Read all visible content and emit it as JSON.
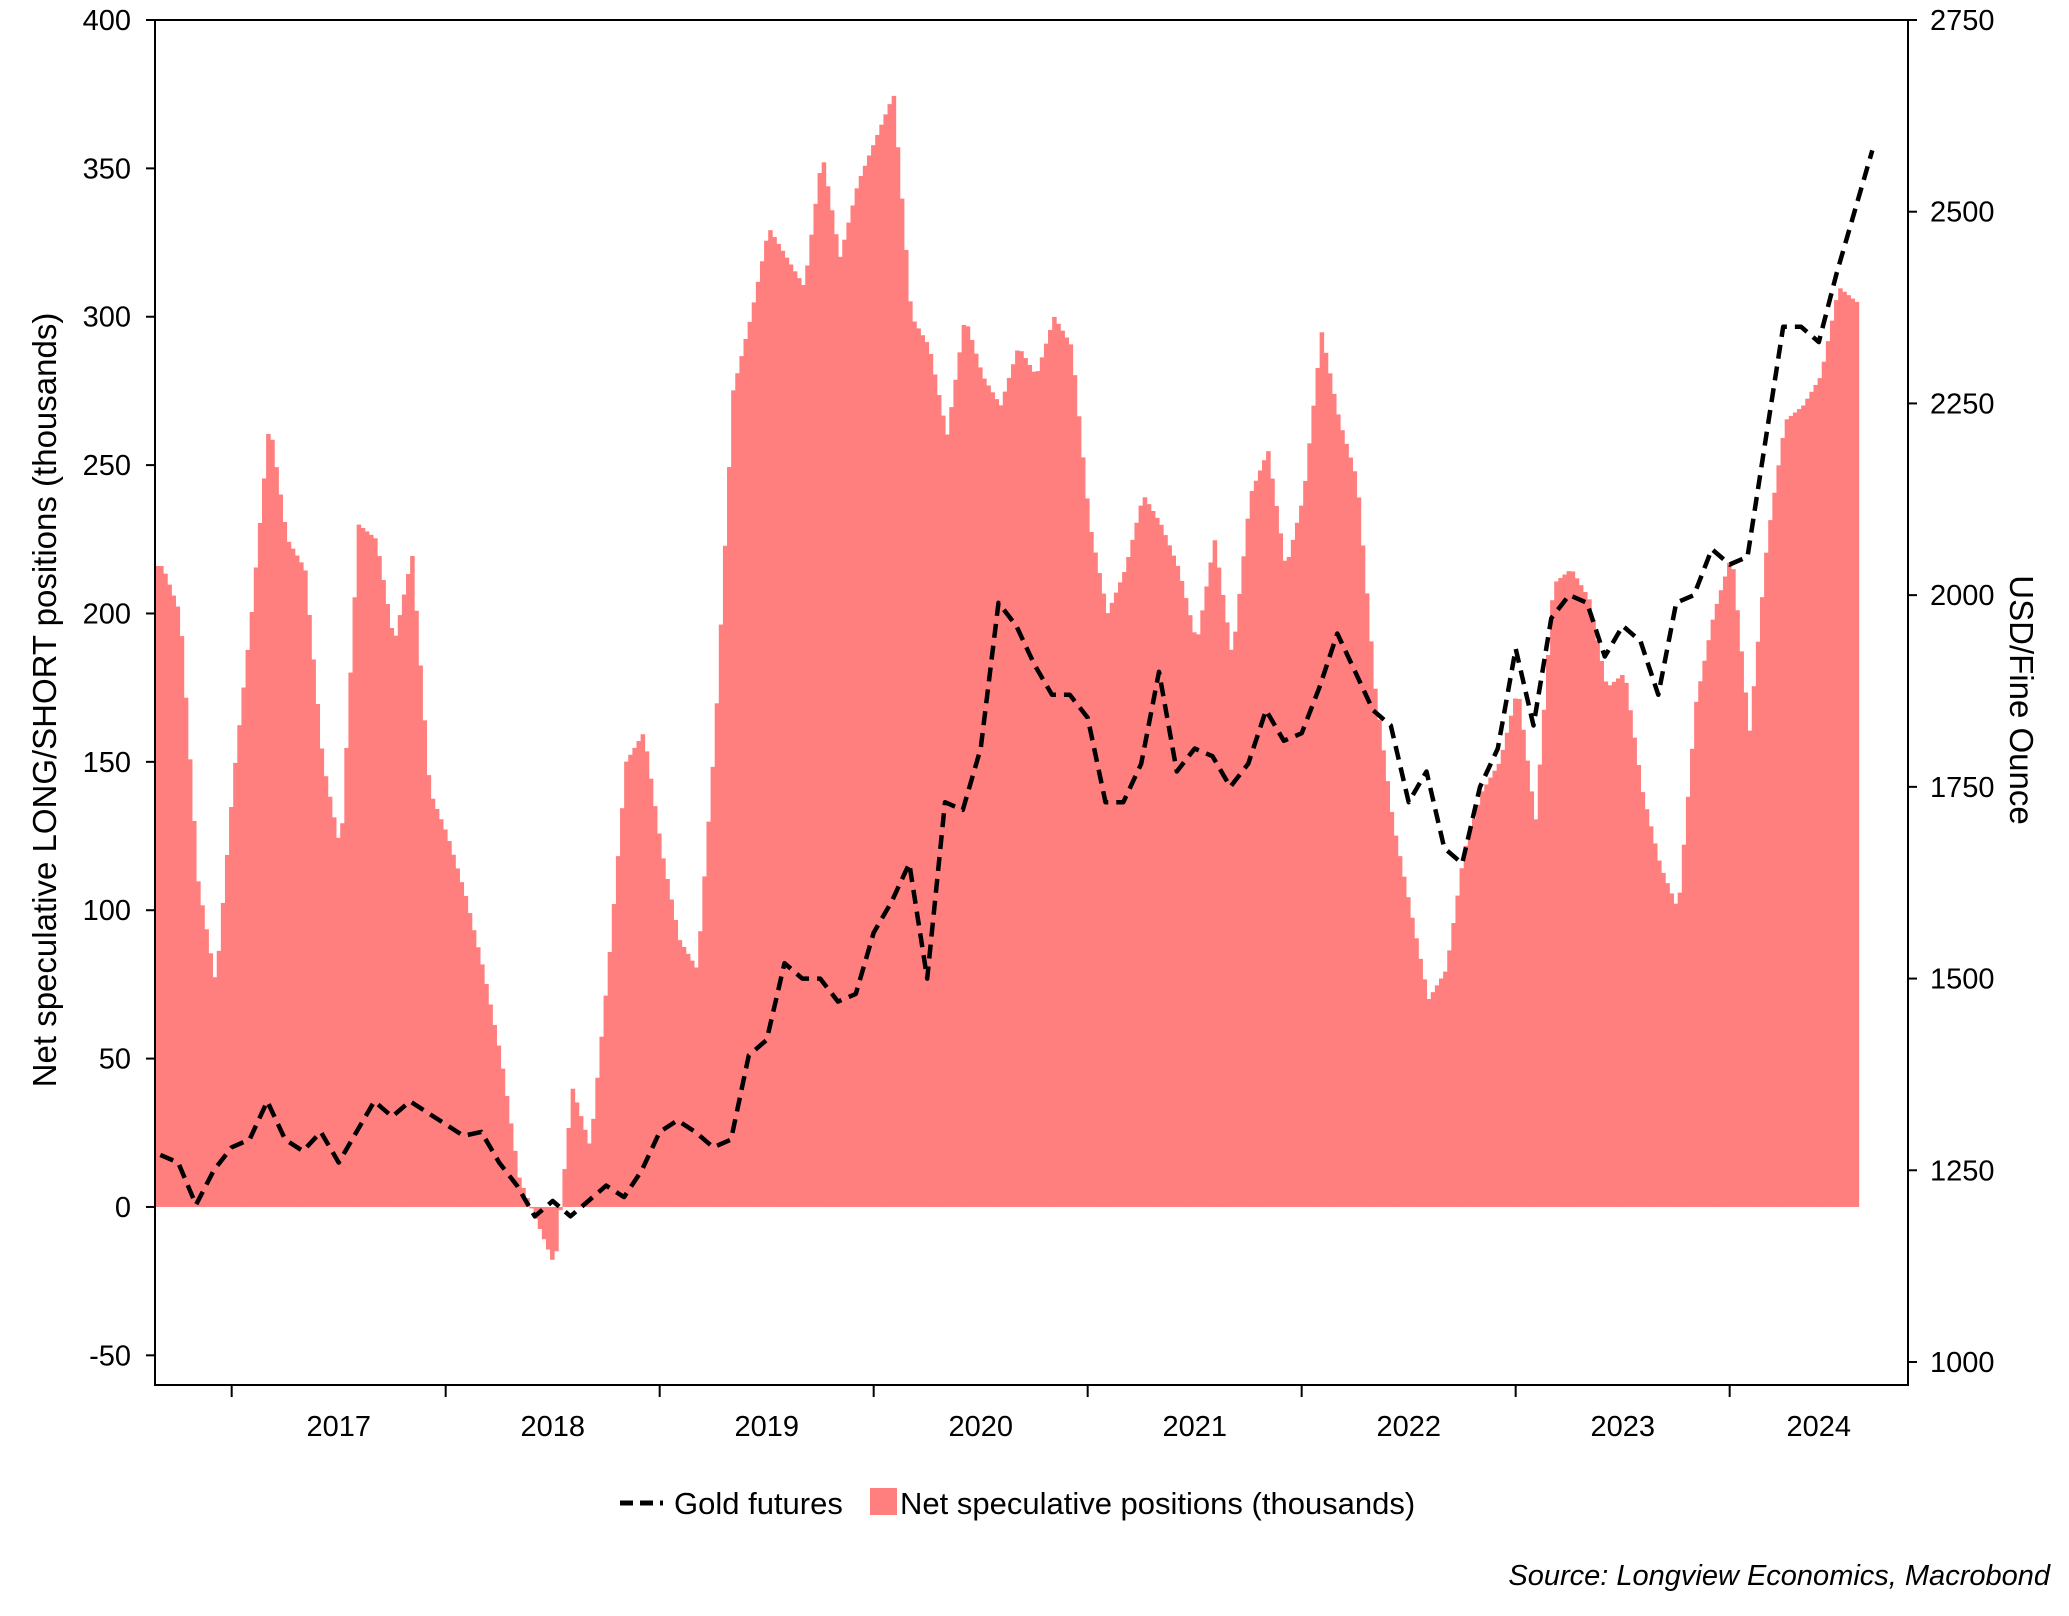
{
  "chart_data": {
    "type": "bar+line",
    "title": "",
    "x_axis": {
      "years": [
        "2017",
        "2018",
        "2019",
        "2020",
        "2021",
        "2022",
        "2023",
        "2024"
      ]
    },
    "y_left": {
      "label": "Net speculative LONG/SHORT positions (thousands)",
      "range": [
        -60,
        400
      ],
      "ticks": [
        "400",
        "350",
        "300",
        "250",
        "200",
        "150",
        "100",
        "50",
        "0",
        "-50"
      ]
    },
    "y_right": {
      "label": "USD/Fine Ounce",
      "range": [
        970,
        2750
      ],
      "ticks": [
        "2750",
        "2500",
        "2250",
        "2000",
        "1750",
        "1500",
        "1250",
        "1000"
      ]
    },
    "series": [
      {
        "name": "Net speculative positions (thousands)",
        "type": "bar",
        "axis": "left",
        "color": "#ff7f7f",
        "points": [
          [
            "2016-09-01",
            216
          ],
          [
            "2016-10-01",
            200
          ],
          [
            "2016-11-01",
            110
          ],
          [
            "2016-12-01",
            75
          ],
          [
            "2017-01-01",
            145
          ],
          [
            "2017-02-01",
            200
          ],
          [
            "2017-03-01",
            265
          ],
          [
            "2017-04-01",
            225
          ],
          [
            "2017-05-01",
            215
          ],
          [
            "2017-06-01",
            150
          ],
          [
            "2017-07-01",
            120
          ],
          [
            "2017-08-01",
            230
          ],
          [
            "2017-09-01",
            225
          ],
          [
            "2017-10-01",
            190
          ],
          [
            "2017-11-01",
            220
          ],
          [
            "2017-12-01",
            140
          ],
          [
            "2018-01-01",
            125
          ],
          [
            "2018-02-01",
            105
          ],
          [
            "2018-03-01",
            80
          ],
          [
            "2018-04-01",
            50
          ],
          [
            "2018-05-01",
            10
          ],
          [
            "2018-06-01",
            -5
          ],
          [
            "2018-07-01",
            -20
          ],
          [
            "2018-08-01",
            40
          ],
          [
            "2018-09-01",
            20
          ],
          [
            "2018-10-01",
            80
          ],
          [
            "2018-11-01",
            150
          ],
          [
            "2018-12-01",
            160
          ],
          [
            "2019-01-01",
            120
          ],
          [
            "2019-02-01",
            90
          ],
          [
            "2019-03-01",
            80
          ],
          [
            "2019-04-01",
            160
          ],
          [
            "2019-05-01",
            275
          ],
          [
            "2019-06-01",
            300
          ],
          [
            "2019-07-01",
            330
          ],
          [
            "2019-08-01",
            320
          ],
          [
            "2019-09-01",
            310
          ],
          [
            "2019-10-01",
            355
          ],
          [
            "2019-11-01",
            320
          ],
          [
            "2019-12-01",
            345
          ],
          [
            "2020-01-01",
            360
          ],
          [
            "2020-02-01",
            375
          ],
          [
            "2020-03-01",
            300
          ],
          [
            "2020-04-01",
            290
          ],
          [
            "2020-05-01",
            260
          ],
          [
            "2020-06-01",
            300
          ],
          [
            "2020-07-01",
            280
          ],
          [
            "2020-08-01",
            270
          ],
          [
            "2020-09-01",
            290
          ],
          [
            "2020-10-01",
            280
          ],
          [
            "2020-11-01",
            300
          ],
          [
            "2020-12-01",
            290
          ],
          [
            "2021-01-01",
            230
          ],
          [
            "2021-02-01",
            200
          ],
          [
            "2021-03-01",
            215
          ],
          [
            "2021-04-01",
            240
          ],
          [
            "2021-05-01",
            230
          ],
          [
            "2021-06-01",
            215
          ],
          [
            "2021-07-01",
            190
          ],
          [
            "2021-08-01",
            225
          ],
          [
            "2021-09-01",
            185
          ],
          [
            "2021-10-01",
            240
          ],
          [
            "2021-11-01",
            255
          ],
          [
            "2021-12-01",
            215
          ],
          [
            "2022-01-01",
            240
          ],
          [
            "2022-02-01",
            295
          ],
          [
            "2022-03-01",
            265
          ],
          [
            "2022-04-01",
            245
          ],
          [
            "2022-05-01",
            175
          ],
          [
            "2022-06-01",
            130
          ],
          [
            "2022-07-01",
            100
          ],
          [
            "2022-08-01",
            70
          ],
          [
            "2022-09-01",
            80
          ],
          [
            "2022-10-01",
            120
          ],
          [
            "2022-11-01",
            140
          ],
          [
            "2022-12-01",
            150
          ],
          [
            "2023-01-01",
            175
          ],
          [
            "2023-02-01",
            130
          ],
          [
            "2023-03-01",
            210
          ],
          [
            "2023-04-01",
            215
          ],
          [
            "2023-05-01",
            205
          ],
          [
            "2023-06-01",
            175
          ],
          [
            "2023-07-01",
            180
          ],
          [
            "2023-08-01",
            140
          ],
          [
            "2023-09-01",
            115
          ],
          [
            "2023-10-01",
            100
          ],
          [
            "2023-11-01",
            170
          ],
          [
            "2023-12-01",
            200
          ],
          [
            "2024-01-01",
            220
          ],
          [
            "2024-02-01",
            160
          ],
          [
            "2024-03-01",
            225
          ],
          [
            "2024-04-01",
            265
          ],
          [
            "2024-05-01",
            270
          ],
          [
            "2024-06-01",
            280
          ],
          [
            "2024-07-01",
            310
          ],
          [
            "2024-08-01",
            305
          ]
        ]
      },
      {
        "name": "Gold futures",
        "type": "line",
        "style": "dashed",
        "axis": "right",
        "color": "#000000",
        "points": [
          [
            "2016-09-01",
            1270
          ],
          [
            "2016-10-01",
            1260
          ],
          [
            "2016-11-01",
            1205
          ],
          [
            "2016-12-01",
            1250
          ],
          [
            "2017-01-01",
            1280
          ],
          [
            "2017-02-01",
            1290
          ],
          [
            "2017-03-01",
            1340
          ],
          [
            "2017-04-01",
            1290
          ],
          [
            "2017-05-01",
            1275
          ],
          [
            "2017-06-01",
            1300
          ],
          [
            "2017-07-01",
            1260
          ],
          [
            "2017-08-01",
            1300
          ],
          [
            "2017-09-01",
            1340
          ],
          [
            "2017-10-01",
            1320
          ],
          [
            "2017-11-01",
            1340
          ],
          [
            "2017-12-01",
            1325
          ],
          [
            "2018-01-01",
            1310
          ],
          [
            "2018-02-01",
            1295
          ],
          [
            "2018-03-01",
            1300
          ],
          [
            "2018-04-01",
            1260
          ],
          [
            "2018-05-01",
            1230
          ],
          [
            "2018-06-01",
            1190
          ],
          [
            "2018-07-01",
            1210
          ],
          [
            "2018-08-01",
            1190
          ],
          [
            "2018-09-01",
            1210
          ],
          [
            "2018-10-01",
            1230
          ],
          [
            "2018-11-01",
            1215
          ],
          [
            "2018-12-01",
            1250
          ],
          [
            "2019-01-01",
            1300
          ],
          [
            "2019-02-01",
            1315
          ],
          [
            "2019-03-01",
            1300
          ],
          [
            "2019-04-01",
            1280
          ],
          [
            "2019-05-01",
            1290
          ],
          [
            "2019-06-01",
            1400
          ],
          [
            "2019-07-01",
            1420
          ],
          [
            "2019-08-01",
            1520
          ],
          [
            "2019-09-01",
            1500
          ],
          [
            "2019-10-01",
            1500
          ],
          [
            "2019-11-01",
            1470
          ],
          [
            "2019-12-01",
            1480
          ],
          [
            "2020-01-01",
            1560
          ],
          [
            "2020-02-01",
            1600
          ],
          [
            "2020-03-01",
            1650
          ],
          [
            "2020-04-01",
            1500
          ],
          [
            "2020-05-01",
            1730
          ],
          [
            "2020-06-01",
            1720
          ],
          [
            "2020-07-01",
            1800
          ],
          [
            "2020-08-01",
            1990
          ],
          [
            "2020-09-01",
            1960
          ],
          [
            "2020-10-01",
            1910
          ],
          [
            "2020-11-01",
            1870
          ],
          [
            "2020-12-01",
            1870
          ],
          [
            "2021-01-01",
            1840
          ],
          [
            "2021-02-01",
            1730
          ],
          [
            "2021-03-01",
            1730
          ],
          [
            "2021-04-01",
            1780
          ],
          [
            "2021-05-01",
            1900
          ],
          [
            "2021-06-01",
            1770
          ],
          [
            "2021-07-01",
            1800
          ],
          [
            "2021-08-01",
            1790
          ],
          [
            "2021-09-01",
            1750
          ],
          [
            "2021-10-01",
            1780
          ],
          [
            "2021-11-01",
            1850
          ],
          [
            "2021-12-01",
            1810
          ],
          [
            "2022-01-01",
            1820
          ],
          [
            "2022-02-01",
            1880
          ],
          [
            "2022-03-01",
            1950
          ],
          [
            "2022-04-01",
            1900
          ],
          [
            "2022-05-01",
            1850
          ],
          [
            "2022-06-01",
            1830
          ],
          [
            "2022-07-01",
            1730
          ],
          [
            "2022-08-01",
            1770
          ],
          [
            "2022-09-01",
            1670
          ],
          [
            "2022-10-01",
            1650
          ],
          [
            "2022-11-01",
            1750
          ],
          [
            "2022-12-01",
            1800
          ],
          [
            "2023-01-01",
            1930
          ],
          [
            "2023-02-01",
            1830
          ],
          [
            "2023-03-01",
            1970
          ],
          [
            "2023-04-01",
            2000
          ],
          [
            "2023-05-01",
            1990
          ],
          [
            "2023-06-01",
            1920
          ],
          [
            "2023-07-01",
            1960
          ],
          [
            "2023-08-01",
            1940
          ],
          [
            "2023-09-01",
            1870
          ],
          [
            "2023-10-01",
            1990
          ],
          [
            "2023-11-01",
            2000
          ],
          [
            "2023-12-01",
            2060
          ],
          [
            "2024-01-01",
            2040
          ],
          [
            "2024-02-01",
            2050
          ],
          [
            "2024-03-01",
            2200
          ],
          [
            "2024-04-01",
            2350
          ],
          [
            "2024-05-01",
            2350
          ],
          [
            "2024-06-01",
            2330
          ],
          [
            "2024-07-01",
            2420
          ],
          [
            "2024-08-01",
            2500
          ],
          [
            "2024-09-01",
            2580
          ]
        ]
      }
    ],
    "legend": {
      "position": "bottom"
    },
    "grid": false
  },
  "source": "Source: Longview Economics, Macrobond"
}
